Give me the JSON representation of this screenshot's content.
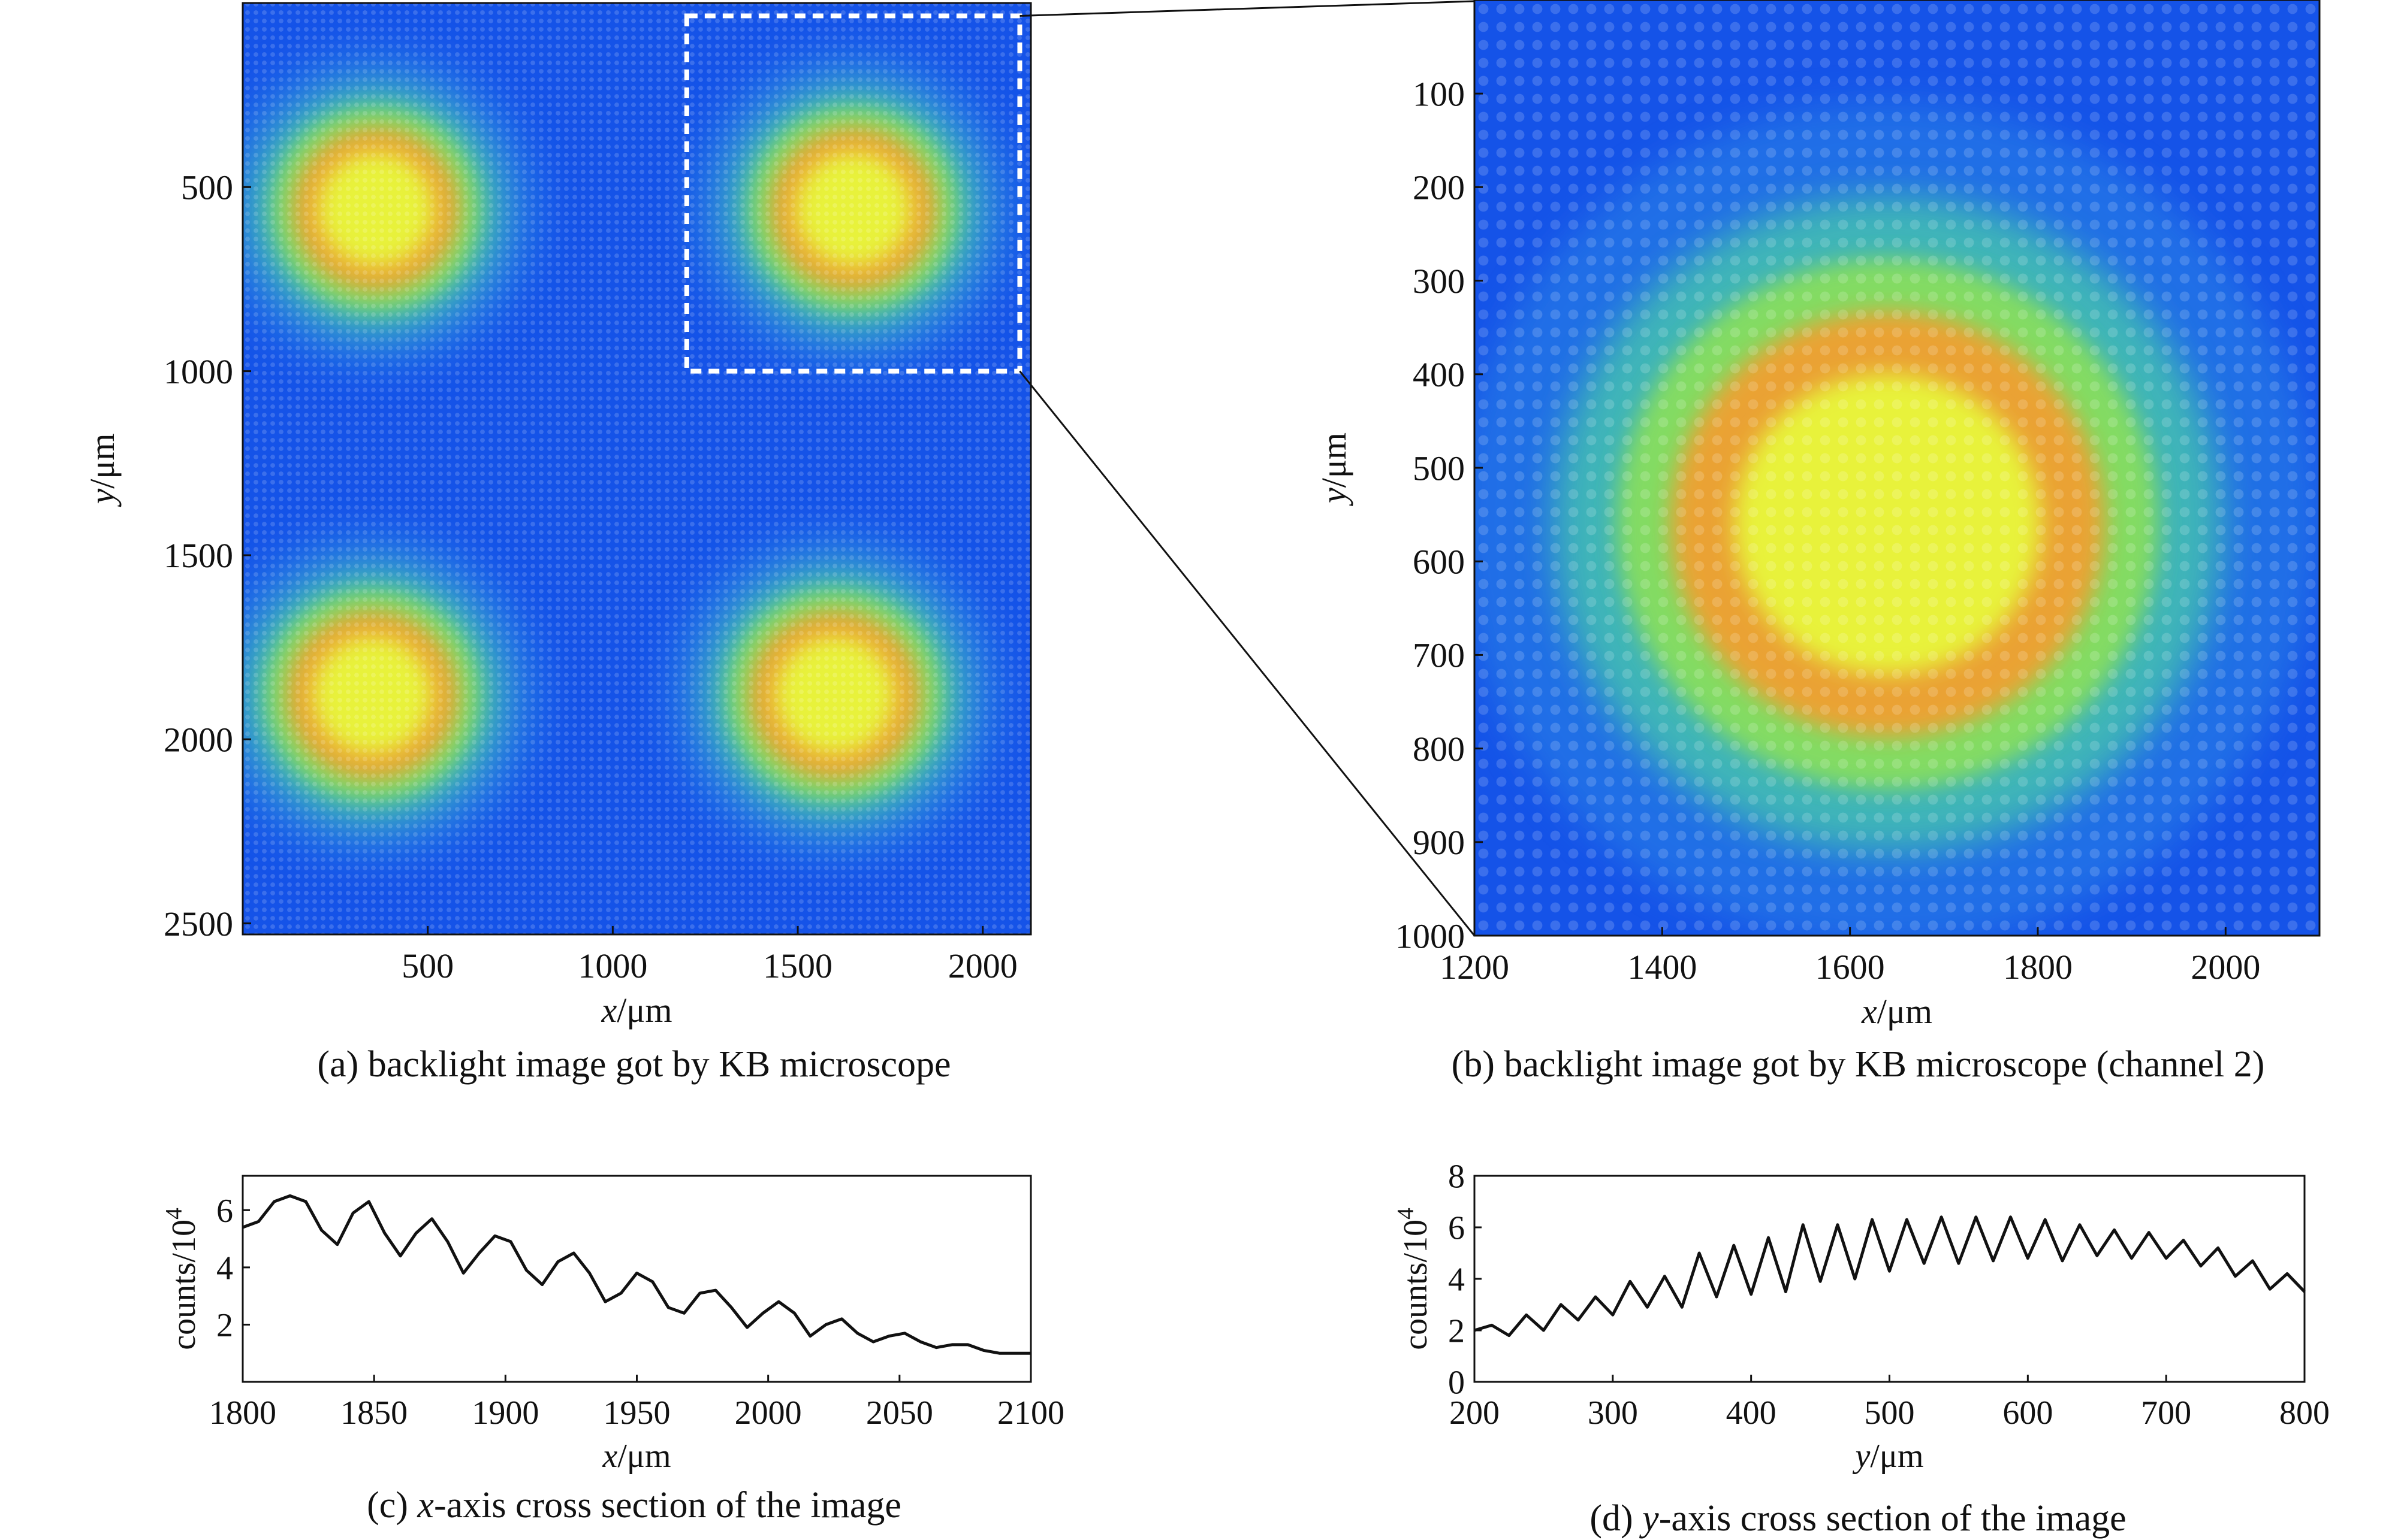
{
  "theme": {
    "colormap": [
      "#0b2fd0",
      "#1553e8",
      "#2a86e6",
      "#45c1b0",
      "#8be05a",
      "#e8f23a",
      "#f5e020",
      "#f0a030"
    ],
    "line_color": "#111111",
    "zoom_box_color": "#ffffff"
  },
  "chart_data": [
    {
      "id": "a",
      "type": "heatmap",
      "caption": "(a) backlight image got by KB microscope",
      "xlabel_var": "x",
      "xlabel_unit": "/μm",
      "ylabel_var": "y",
      "ylabel_unit": "/μm",
      "xlim": [
        0,
        2130
      ],
      "ylim": [
        0,
        2530
      ],
      "y_inverted": true,
      "xticks": [
        500,
        1000,
        1500,
        2000
      ],
      "yticks": [
        500,
        1000,
        1500,
        2000,
        2500
      ],
      "grid": false,
      "spots": [
        {
          "cx": 360,
          "cy": 560,
          "r": 330
        },
        {
          "cx": 1650,
          "cy": 560,
          "r": 330
        },
        {
          "cx": 350,
          "cy": 1880,
          "r": 340
        },
        {
          "cx": 1600,
          "cy": 1880,
          "r": 340
        }
      ],
      "zoom_box": {
        "x": [
          1200,
          2100
        ],
        "y": [
          0,
          1000
        ],
        "style": "dashed"
      }
    },
    {
      "id": "b",
      "type": "heatmap",
      "caption": "(b) backlight image got by KB microscope (channel 2)",
      "xlabel_var": "x",
      "xlabel_unit": "/μm",
      "ylabel_var": "y",
      "ylabel_unit": "/μm",
      "xlim": [
        1200,
        2100
      ],
      "ylim": [
        0,
        1000
      ],
      "y_inverted": true,
      "xticks": [
        1200,
        1400,
        1600,
        1800,
        2000
      ],
      "yticks": [
        100,
        200,
        300,
        400,
        500,
        600,
        700,
        800,
        900,
        1000
      ],
      "grid": false,
      "spots": [
        {
          "cx": 1640,
          "cy": 560,
          "r": 340
        }
      ]
    },
    {
      "id": "c",
      "type": "line",
      "caption_prefix": "(c) ",
      "caption_var": "x",
      "caption_rest": "-axis cross section of the image",
      "xlabel_var": "x",
      "xlabel_unit": "/μm",
      "ylabel": "counts/10",
      "ylabel_exp": "4",
      "xlim": [
        1800,
        2100
      ],
      "ylim": [
        0,
        7.2
      ],
      "xticks": [
        1800,
        1850,
        1900,
        1950,
        2000,
        2050,
        2100
      ],
      "yticks": [
        2,
        4,
        6
      ],
      "grid": false,
      "series": [
        {
          "x": [
            1800,
            1806,
            1812,
            1818,
            1824,
            1830,
            1836,
            1842,
            1848,
            1854,
            1860,
            1866,
            1872,
            1878,
            1884,
            1890,
            1896,
            1902,
            1908,
            1914,
            1920,
            1926,
            1932,
            1938,
            1944,
            1950,
            1956,
            1962,
            1968,
            1974,
            1980,
            1986,
            1992,
            1998,
            2004,
            2010,
            2016,
            2022,
            2028,
            2034,
            2040,
            2046,
            2052,
            2058,
            2064,
            2070,
            2076,
            2082,
            2088,
            2094,
            2100
          ],
          "y": [
            5.4,
            5.6,
            6.3,
            6.5,
            6.3,
            5.3,
            4.8,
            5.9,
            6.3,
            5.2,
            4.4,
            5.2,
            5.7,
            4.9,
            3.8,
            4.5,
            5.1,
            4.9,
            3.9,
            3.4,
            4.2,
            4.5,
            3.8,
            2.8,
            3.1,
            3.8,
            3.5,
            2.6,
            2.4,
            3.1,
            3.2,
            2.6,
            1.9,
            2.4,
            2.8,
            2.4,
            1.6,
            2.0,
            2.2,
            1.7,
            1.4,
            1.6,
            1.7,
            1.4,
            1.2,
            1.3,
            1.3,
            1.1,
            1.0,
            1.0,
            1.0
          ]
        }
      ]
    },
    {
      "id": "d",
      "type": "line",
      "caption_prefix": "(d) ",
      "caption_var": "y",
      "caption_rest": "-axis cross section of the image",
      "xlabel_var": "y",
      "xlabel_unit": "/μm",
      "ylabel": "counts/10",
      "ylabel_exp": "4",
      "xlim": [
        200,
        800
      ],
      "ylim": [
        0,
        8
      ],
      "xticks": [
        200,
        300,
        400,
        500,
        600,
        700,
        800
      ],
      "yticks": [
        0,
        2,
        4,
        6,
        8
      ],
      "grid": false,
      "series": [
        {
          "x": [
            200,
            212.5,
            225,
            237.5,
            250,
            262.5,
            275,
            287.5,
            300,
            312.5,
            325,
            337.5,
            350,
            362.5,
            375,
            387.5,
            400,
            412.5,
            425,
            437.5,
            450,
            462.5,
            475,
            487.5,
            500,
            512.5,
            525,
            537.5,
            550,
            562.5,
            575,
            587.5,
            600,
            612.5,
            625,
            637.5,
            650,
            662.5,
            675,
            687.5,
            700,
            712.5,
            725,
            737.5,
            750,
            762.5,
            775,
            787.5,
            800
          ],
          "y": [
            2.0,
            2.2,
            1.8,
            2.6,
            2.0,
            3.0,
            2.4,
            3.3,
            2.6,
            3.9,
            2.9,
            4.1,
            2.9,
            5.0,
            3.3,
            5.3,
            3.4,
            5.6,
            3.5,
            6.1,
            3.9,
            6.1,
            4.0,
            6.3,
            4.3,
            6.3,
            4.6,
            6.4,
            4.6,
            6.4,
            4.7,
            6.4,
            4.8,
            6.3,
            4.7,
            6.1,
            4.9,
            5.9,
            4.8,
            5.8,
            4.8,
            5.5,
            4.5,
            5.2,
            4.1,
            4.7,
            3.6,
            4.2,
            3.5
          ]
        }
      ]
    }
  ]
}
